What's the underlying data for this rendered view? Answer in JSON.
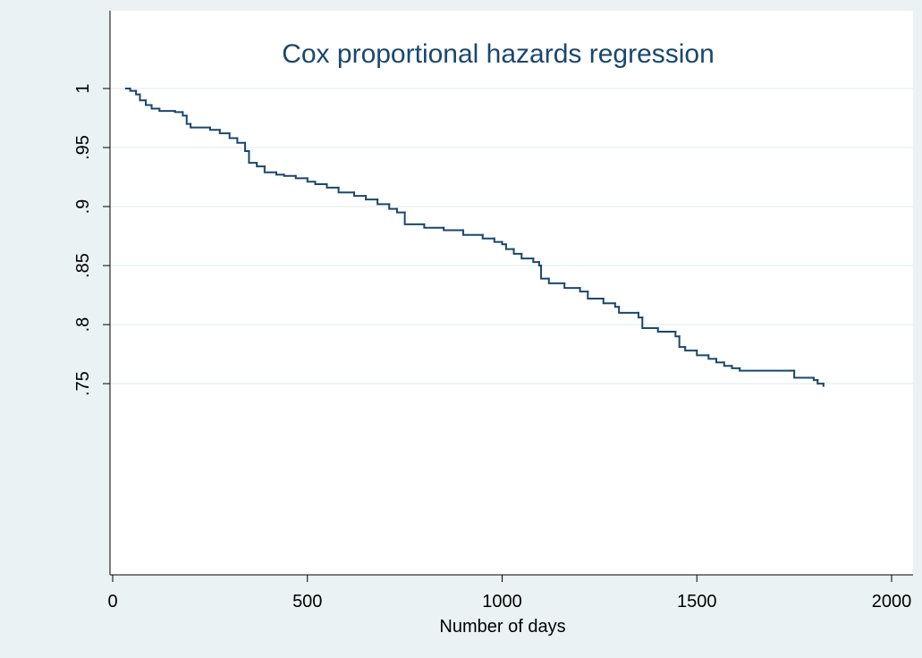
{
  "chart_data": {
    "type": "line",
    "step": true,
    "title": "Cox proportional hazards regression",
    "x_label": "Number of days",
    "x": [
      34,
      45,
      60,
      70,
      85,
      100,
      120,
      160,
      180,
      190,
      200,
      250,
      275,
      300,
      320,
      340,
      350,
      370,
      390,
      420,
      440,
      470,
      500,
      520,
      550,
      580,
      620,
      650,
      680,
      710,
      730,
      750,
      800,
      850,
      900,
      950,
      980,
      1000,
      1010,
      1030,
      1050,
      1080,
      1095,
      1100,
      1120,
      1160,
      1200,
      1220,
      1260,
      1290,
      1300,
      1350,
      1360,
      1400,
      1445,
      1455,
      1470,
      1500,
      1530,
      1550,
      1570,
      1590,
      1610,
      1740,
      1750,
      1800,
      1810,
      1825
    ],
    "series": [
      {
        "color": "#1a476f",
        "values": [
          1.0,
          0.998,
          0.995,
          0.99,
          0.986,
          0.983,
          0.981,
          0.98,
          0.977,
          0.97,
          0.967,
          0.965,
          0.962,
          0.958,
          0.954,
          0.947,
          0.937,
          0.934,
          0.929,
          0.927,
          0.926,
          0.924,
          0.921,
          0.919,
          0.916,
          0.912,
          0.909,
          0.906,
          0.902,
          0.898,
          0.895,
          0.885,
          0.882,
          0.88,
          0.876,
          0.873,
          0.87,
          0.868,
          0.864,
          0.86,
          0.856,
          0.853,
          0.85,
          0.839,
          0.835,
          0.831,
          0.828,
          0.822,
          0.818,
          0.815,
          0.81,
          0.806,
          0.797,
          0.794,
          0.79,
          0.781,
          0.778,
          0.774,
          0.771,
          0.768,
          0.765,
          0.763,
          0.761,
          0.761,
          0.755,
          0.753,
          0.75,
          0.748
        ]
      }
    ],
    "xlim": [
      0,
      2000
    ],
    "xticks": [
      0,
      500,
      1000,
      1500,
      2000
    ],
    "ylim": [
      0.588,
      1
    ],
    "yticks": [
      {
        "value": 1,
        "label": "1"
      },
      {
        "value": 0.95,
        "label": ".95"
      },
      {
        "value": 0.9,
        "label": ".9"
      },
      {
        "value": 0.85,
        "label": ".85"
      },
      {
        "value": 0.8,
        "label": ".8"
      },
      {
        "value": 0.75,
        "label": ".75"
      }
    ],
    "grid": true
  }
}
